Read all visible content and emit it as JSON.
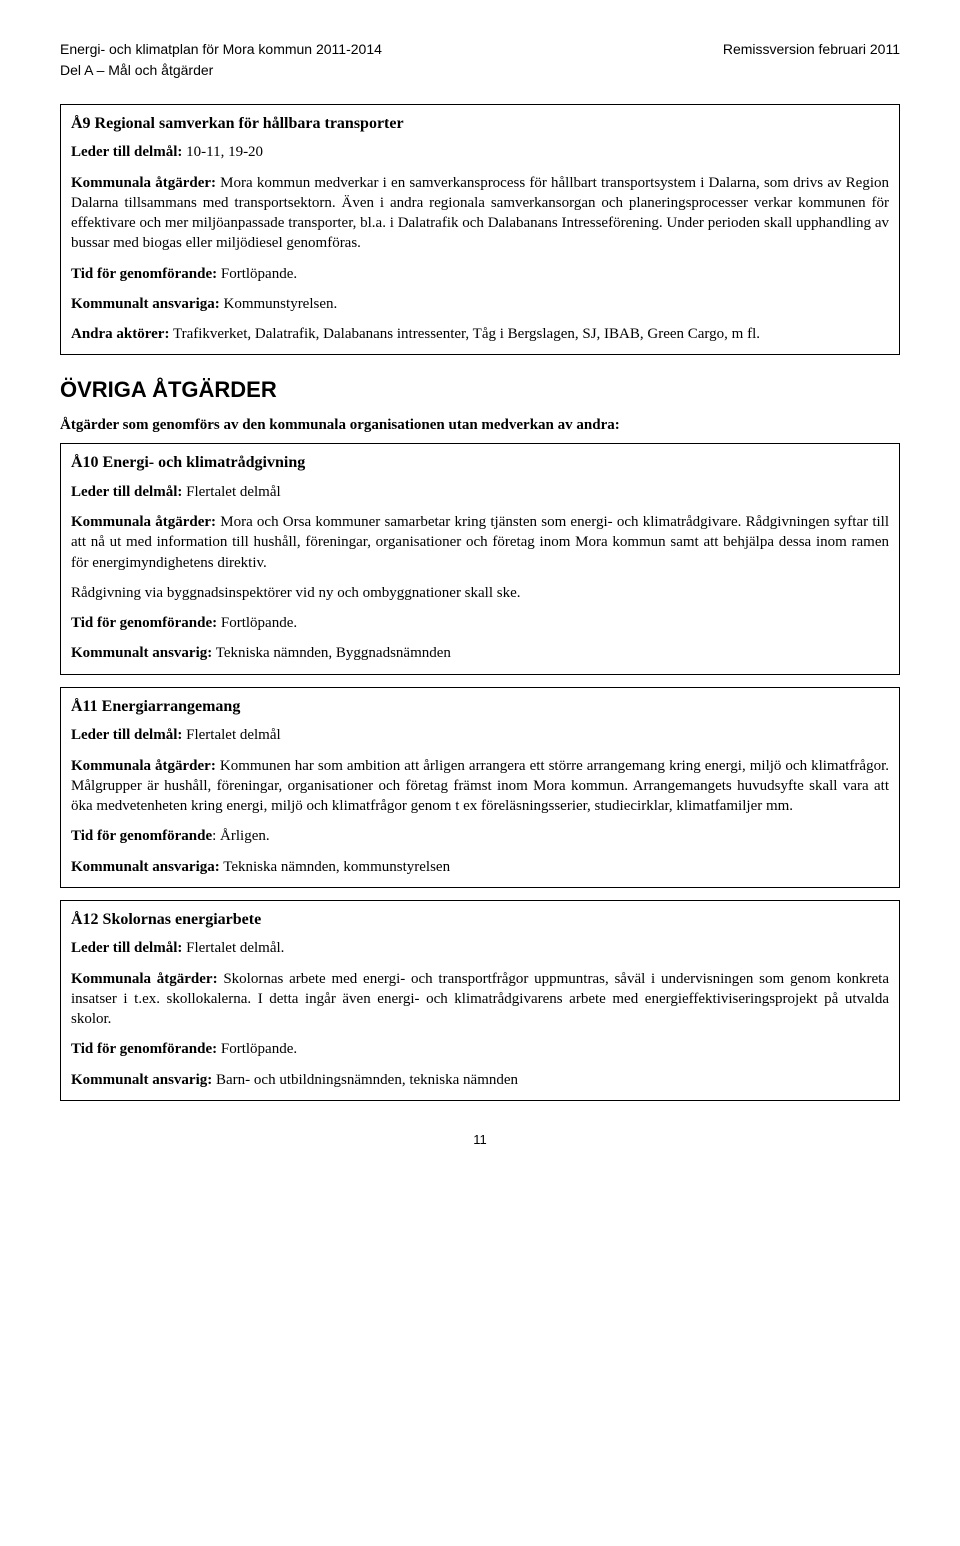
{
  "header": {
    "left_line1": "Energi- och klimatplan för Mora kommun 2011-2014",
    "right_line1": "Remissversion februari 2011",
    "left_line2": "Del A – Mål och åtgärder"
  },
  "box_a9": {
    "title": "Å9  Regional samverkan för hållbara transporter",
    "leads_label": "Leder till delmål:",
    "leads_val": " 10-11, 19-20",
    "kom_label": "Kommunala åtgärder:",
    "kom_text": " Mora kommun medverkar i en samverkansprocess för hållbart transportsystem i Dalarna, som drivs av Region Dalarna tillsammans med transportsektorn. Även i andra regionala samverkansorgan och planeringsprocesser verkar kommunen för effektivare och mer miljöanpassade transporter, bl.a. i Dalatrafik och Dalabanans Intresseförening. Under perioden skall upphandling av bussar med biogas eller miljödiesel genomföras.",
    "tid_label": "Tid för genomförande:",
    "tid_val": " Fortlöpande.",
    "ansv_label": "Kommunalt ansvariga:",
    "ansv_val": " Kommunstyrelsen.",
    "andra_label": "Andra aktörer:",
    "andra_val": " Trafikverket, Dalatrafik, Dalabanans intressenter, Tåg i Bergslagen, SJ, IBAB, Green Cargo, m fl."
  },
  "section_heading": "ÖVRIGA ÅTGÄRDER",
  "section_intro": "Åtgärder som genomförs av den kommunala organisationen utan medverkan av andra:",
  "box_a10": {
    "title": "Å10  Energi- och klimatrådgivning",
    "leads_label": "Leder till delmål:",
    "leads_val": " Flertalet delmål",
    "kom_label": "Kommunala åtgärder:",
    "kom_text": " Mora och Orsa kommuner samarbetar kring tjänsten som energi- och klimatrådgivare. Rådgivningen syftar till att nå ut med information till hushåll, föreningar, organisationer och företag inom Mora kommun samt att behjälpa dessa inom ramen för energimyndighetens direktiv.",
    "extra": "Rådgivning via byggnadsinspektörer vid ny och ombyggnationer skall ske.",
    "tid_label": "Tid för genomförande:",
    "tid_val": " Fortlöpande.",
    "ansv_label": "Kommunalt ansvarig:",
    "ansv_val": " Tekniska nämnden, Byggnadsnämnden"
  },
  "box_a11": {
    "title": "Å11  Energiarrangemang",
    "leads_label": "Leder till delmål:",
    "leads_val": " Flertalet delmål",
    "kom_label": "Kommunala åtgärder:",
    "kom_text": " Kommunen har som ambition att årligen arrangera ett större arrangemang kring energi, miljö och klimatfrågor. Målgrupper är hushåll, föreningar, organisationer och företag främst inom Mora kommun. Arrangemangets huvudsyfte skall vara att öka medvetenheten kring energi, miljö och klimatfrågor genom t ex föreläsningsserier, studiecirklar, klimatfamiljer mm.",
    "tid_label": "Tid för genomförande",
    "tid_val": ": Årligen.",
    "ansv_label": "Kommunalt ansvariga:",
    "ansv_val": " Tekniska nämnden, kommunstyrelsen"
  },
  "box_a12": {
    "title": "Å12  Skolornas energiarbete",
    "leads_label": "Leder till delmål:",
    "leads_val": " Flertalet delmål.",
    "kom_label": "Kommunala åtgärder:",
    "kom_text": " Skolornas arbete med energi- och transportfrågor uppmuntras, såväl i undervisningen som genom konkreta insatser i t.ex. skollokalerna. I detta ingår även energi- och klimatrådgivarens arbete med energieffektiviseringsprojekt på utvalda skolor.",
    "tid_label": "Tid för genomförande:",
    "tid_val": " Fortlöpande.",
    "ansv_label": "Kommunalt ansvarig:",
    "ansv_val": " Barn- och utbildningsnämnden, tekniska nämnden"
  },
  "page_number": "11"
}
